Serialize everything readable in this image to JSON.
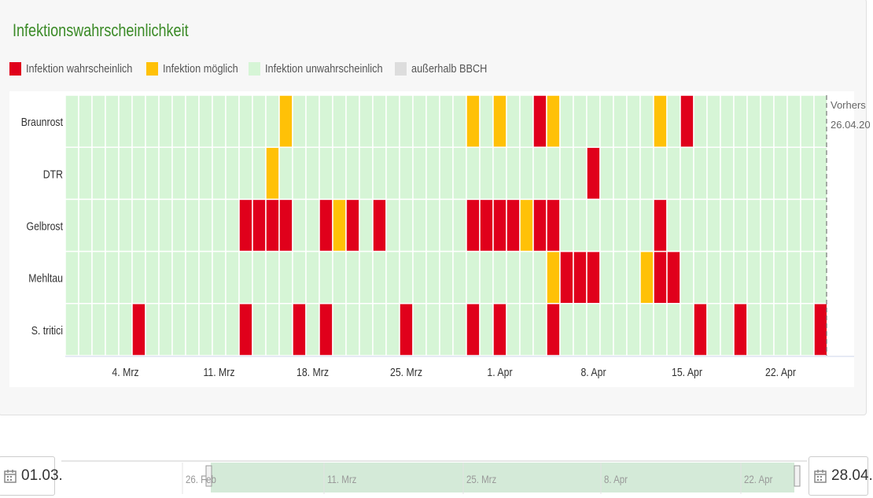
{
  "title": "Infektionswahrscheinlichkeit",
  "legend": [
    {
      "label": "Infektion wahrscheinlich",
      "color": "#e0001b"
    },
    {
      "label": "Infektion möglich",
      "color": "#ffc107"
    },
    {
      "label": "Infektion unwahrscheinlich",
      "color": "#d6f5d6"
    },
    {
      "label": "außerhalb BBCH",
      "color": "#dddddd"
    }
  ],
  "forecast_label": {
    "line1": "Vorhers",
    "line2": "26.04.20"
  },
  "chart_data": {
    "type": "heatmap",
    "x_start_date": "2024-02-29",
    "x_end_date": "2024-04-25",
    "forecast_date": "2024-04-26",
    "rows": [
      "Braunrost",
      "DTR",
      "Gelbrost",
      "Mehltau",
      "S. tritici"
    ],
    "x_ticks": [
      "4. Mrz",
      "11. Mrz",
      "18. Mrz",
      "25. Mrz",
      "1. Apr",
      "8. Apr",
      "15. Apr",
      "22. Apr"
    ],
    "state_legend": {
      "2": "Infektion wahrscheinlich",
      "1": "Infektion möglich",
      "0": "Infektion unwahrscheinlich"
    },
    "events": {
      "Braunrost": [
        {
          "date": "2024-03-16",
          "state": 1
        },
        {
          "date": "2024-03-30",
          "state": 1
        },
        {
          "date": "2024-04-01",
          "state": 1
        },
        {
          "date": "2024-04-04",
          "state": 2
        },
        {
          "date": "2024-04-05",
          "state": 1
        },
        {
          "date": "2024-04-13",
          "state": 1
        },
        {
          "date": "2024-04-15",
          "state": 2
        }
      ],
      "DTR": [
        {
          "date": "2024-03-15",
          "state": 1
        },
        {
          "date": "2024-04-08",
          "state": 2
        }
      ],
      "Gelbrost": [
        {
          "date": "2024-03-13",
          "state": 2
        },
        {
          "date": "2024-03-14",
          "state": 2
        },
        {
          "date": "2024-03-15",
          "state": 2
        },
        {
          "date": "2024-03-16",
          "state": 2
        },
        {
          "date": "2024-03-19",
          "state": 2
        },
        {
          "date": "2024-03-20",
          "state": 1
        },
        {
          "date": "2024-03-21",
          "state": 2
        },
        {
          "date": "2024-03-23",
          "state": 2
        },
        {
          "date": "2024-03-30",
          "state": 2
        },
        {
          "date": "2024-03-31",
          "state": 2
        },
        {
          "date": "2024-04-01",
          "state": 2
        },
        {
          "date": "2024-04-02",
          "state": 2
        },
        {
          "date": "2024-04-03",
          "state": 1
        },
        {
          "date": "2024-04-04",
          "state": 2
        },
        {
          "date": "2024-04-05",
          "state": 2
        },
        {
          "date": "2024-04-13",
          "state": 2
        }
      ],
      "Mehltau": [
        {
          "date": "2024-04-05",
          "state": 1
        },
        {
          "date": "2024-04-06",
          "state": 2
        },
        {
          "date": "2024-04-07",
          "state": 2
        },
        {
          "date": "2024-04-08",
          "state": 2
        },
        {
          "date": "2024-04-12",
          "state": 1
        },
        {
          "date": "2024-04-13",
          "state": 2
        },
        {
          "date": "2024-04-14",
          "state": 2
        }
      ],
      "S. tritici": [
        {
          "date": "2024-03-05",
          "state": 2
        },
        {
          "date": "2024-03-13",
          "state": 2
        },
        {
          "date": "2024-03-17",
          "state": 2
        },
        {
          "date": "2024-03-19",
          "state": 2
        },
        {
          "date": "2024-03-25",
          "state": 2
        },
        {
          "date": "2024-03-30",
          "state": 2
        },
        {
          "date": "2024-04-01",
          "state": 2
        },
        {
          "date": "2024-04-05",
          "state": 2
        },
        {
          "date": "2024-04-16",
          "state": 2
        },
        {
          "date": "2024-04-19",
          "state": 2
        },
        {
          "date": "2024-04-25",
          "state": 2
        }
      ]
    }
  },
  "range": {
    "start": "01.03.",
    "end": "28.04.",
    "navigator_labels": [
      "26. Feb",
      "11. Mrz",
      "25. Mrz",
      "8. Apr",
      "22. Apr"
    ]
  }
}
